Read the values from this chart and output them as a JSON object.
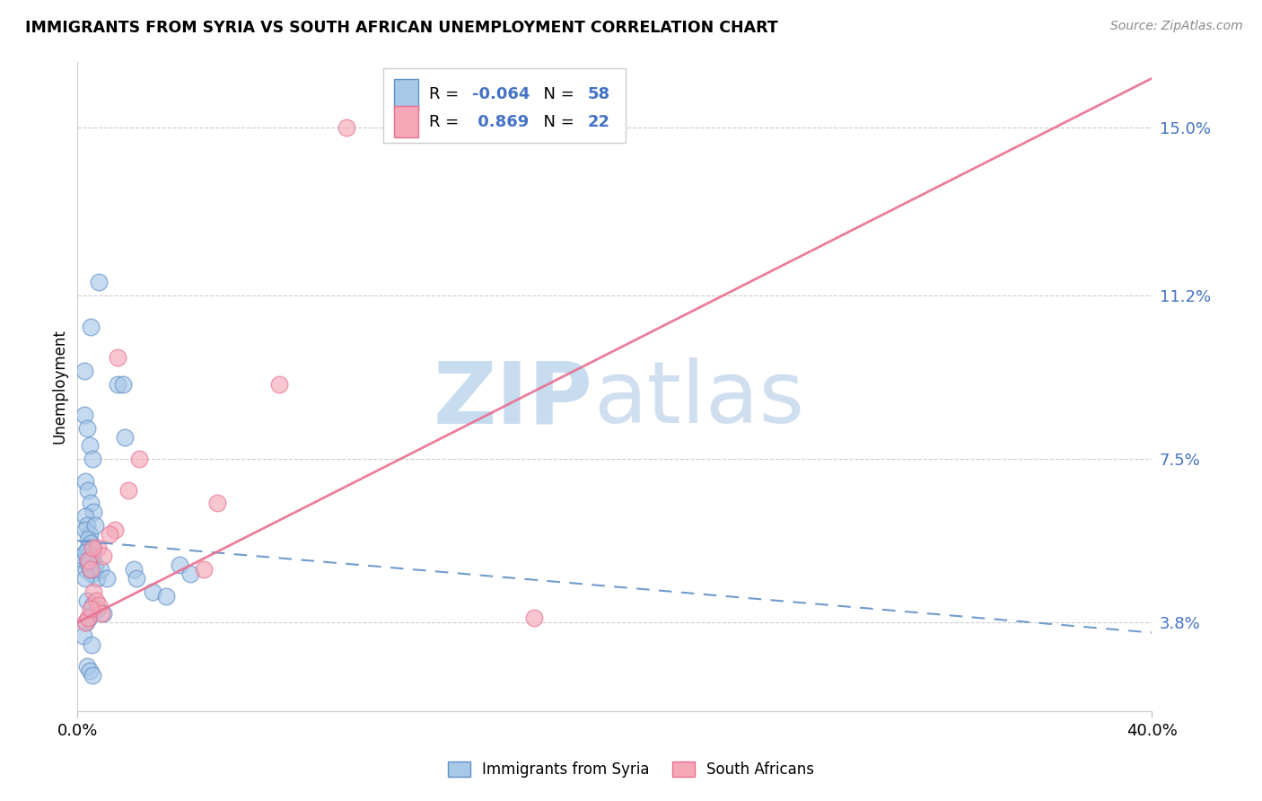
{
  "title": "IMMIGRANTS FROM SYRIA VS SOUTH AFRICAN UNEMPLOYMENT CORRELATION CHART",
  "source": "Source: ZipAtlas.com",
  "ylabel": "Unemployment",
  "ytick_values": [
    3.8,
    7.5,
    11.2,
    15.0
  ],
  "xlim": [
    0.0,
    40.0
  ],
  "ylim": [
    1.8,
    16.5
  ],
  "legend_blue_r": "-0.064",
  "legend_blue_n": "58",
  "legend_pink_r": "0.869",
  "legend_pink_n": "22",
  "blue_color": "#A8C8E8",
  "pink_color": "#F4A8B8",
  "blue_edge_color": "#6090C8",
  "pink_edge_color": "#E87090",
  "blue_line_color": "#6090C8",
  "pink_line_color": "#E87090",
  "ytick_color": "#4472C4",
  "watermark_zip_color": "#C8DCF0",
  "watermark_atlas_color": "#D0DFF0",
  "blue_scatter_x": [
    0.5,
    0.8,
    1.5,
    1.7,
    1.75,
    0.25,
    0.35,
    0.45,
    0.55,
    0.3,
    0.4,
    0.5,
    0.6,
    0.25,
    0.3,
    0.35,
    0.45,
    0.28,
    0.38,
    0.48,
    0.58,
    0.32,
    0.42,
    0.22,
    0.32,
    0.42,
    0.52,
    0.62,
    0.72,
    0.18,
    0.28,
    0.38,
    0.55,
    0.65,
    2.1,
    2.2,
    0.38,
    0.48,
    3.8,
    4.2,
    0.28,
    0.45,
    0.85,
    1.1,
    2.8,
    3.3,
    0.35,
    0.55,
    0.75,
    0.95,
    0.42,
    0.32,
    0.22,
    0.52,
    0.35,
    0.45,
    0.55,
    0.65
  ],
  "blue_scatter_y": [
    10.5,
    11.5,
    9.2,
    9.2,
    8.0,
    8.5,
    8.2,
    7.8,
    7.5,
    7.0,
    6.8,
    6.5,
    6.3,
    9.5,
    6.2,
    6.0,
    5.8,
    5.9,
    5.7,
    5.6,
    5.5,
    5.4,
    5.3,
    5.2,
    5.0,
    5.1,
    4.9,
    5.0,
    4.8,
    5.3,
    4.8,
    5.5,
    5.3,
    5.1,
    5.0,
    4.8,
    5.2,
    5.0,
    5.1,
    4.9,
    5.4,
    5.2,
    5.0,
    4.8,
    4.5,
    4.4,
    4.3,
    4.2,
    4.1,
    4.0,
    3.9,
    3.8,
    3.5,
    3.3,
    2.8,
    2.7,
    2.6,
    6.0
  ],
  "pink_scatter_x": [
    0.38,
    0.48,
    0.75,
    0.95,
    1.5,
    0.58,
    0.68,
    0.78,
    0.88,
    5.2,
    7.5,
    0.28,
    0.38,
    0.48,
    2.3,
    10.0,
    0.55,
    1.9,
    4.7,
    17.0,
    1.4,
    1.2
  ],
  "pink_scatter_y": [
    5.2,
    5.0,
    5.5,
    5.3,
    9.8,
    4.5,
    4.3,
    4.2,
    4.0,
    6.5,
    9.2,
    3.8,
    3.9,
    4.1,
    7.5,
    15.0,
    5.5,
    6.8,
    5.0,
    3.9,
    5.9,
    5.8
  ],
  "blue_trend_intercept": 5.65,
  "blue_trend_slope": -0.052,
  "pink_trend_intercept": 3.8,
  "pink_trend_slope": 0.308
}
